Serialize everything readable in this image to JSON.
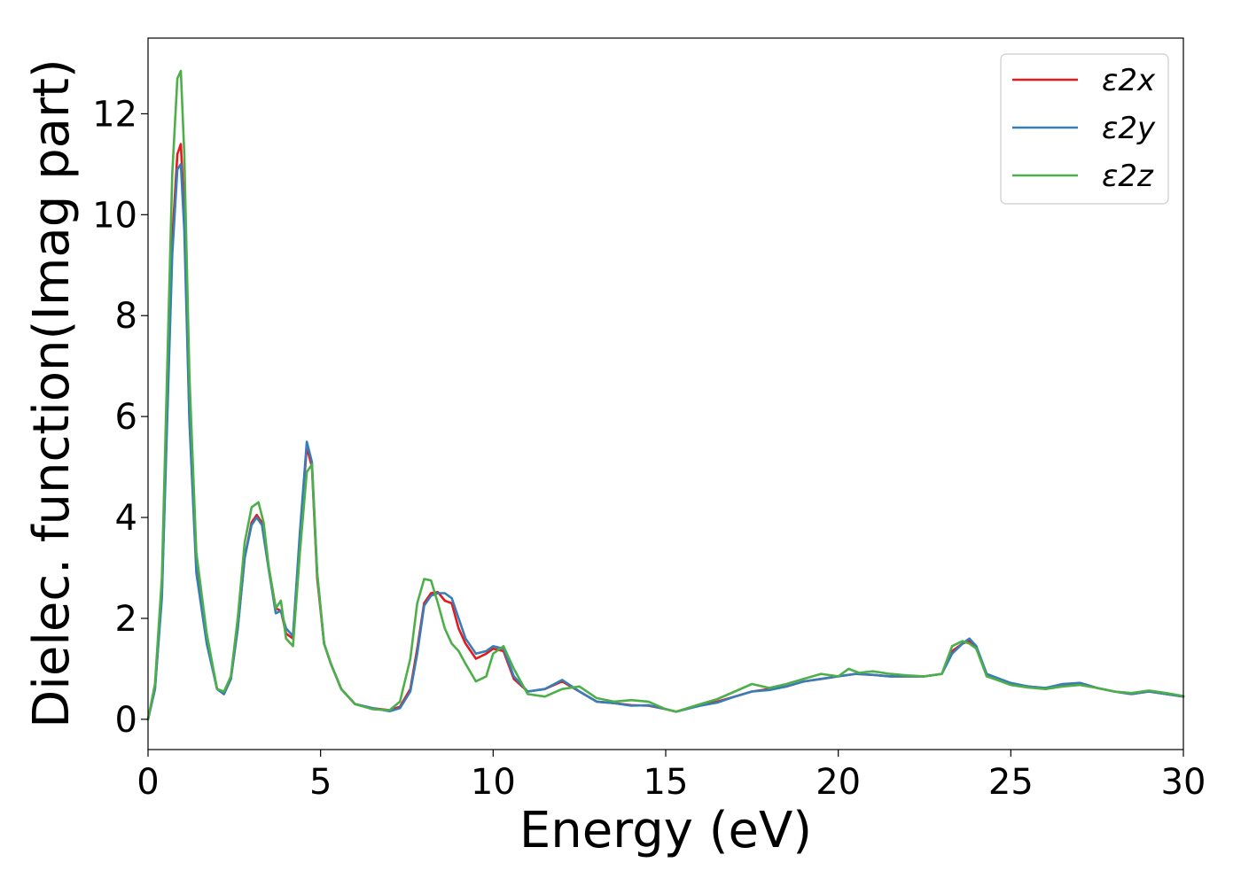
{
  "chart_data": {
    "type": "line",
    "title": "",
    "xlabel": "Energy (eV)",
    "ylabel": "Dielec. function(Imag part)",
    "xlim": [
      0,
      30
    ],
    "ylim": [
      -0.6,
      13.5
    ],
    "xticks": [
      0,
      5,
      10,
      15,
      20,
      25,
      30
    ],
    "yticks": [
      0,
      2,
      4,
      6,
      8,
      10,
      12
    ],
    "grid": false,
    "legend_position": "top-right",
    "series": [
      {
        "name": "ε2x",
        "color": "#e41a1c",
        "x": [
          0,
          0.2,
          0.4,
          0.55,
          0.7,
          0.85,
          0.95,
          1.05,
          1.2,
          1.4,
          1.7,
          2.0,
          2.2,
          2.4,
          2.6,
          2.8,
          3.0,
          3.15,
          3.3,
          3.5,
          3.7,
          3.85,
          4.0,
          4.2,
          4.4,
          4.6,
          4.75,
          4.9,
          5.1,
          5.3,
          5.6,
          6.0,
          6.5,
          7.0,
          7.3,
          7.6,
          7.8,
          8.0,
          8.2,
          8.4,
          8.6,
          8.8,
          9.0,
          9.2,
          9.5,
          9.8,
          10.0,
          10.3,
          10.6,
          11.0,
          11.5,
          12.0,
          12.5,
          13.0,
          13.5,
          14.0,
          14.5,
          15.0,
          15.3,
          16.0,
          16.5,
          17.0,
          17.5,
          18.0,
          18.5,
          19.0,
          19.5,
          20.0,
          20.5,
          21.0,
          21.5,
          22.0,
          22.5,
          23.0,
          23.3,
          23.6,
          23.8,
          24.0,
          24.3,
          24.6,
          25.0,
          25.5,
          26.0,
          26.5,
          27.0,
          27.5,
          28.0,
          28.5,
          29.0,
          29.5,
          30.0
        ],
        "y": [
          0.0,
          0.6,
          2.5,
          6.0,
          9.5,
          11.2,
          11.4,
          10.0,
          6.0,
          3.0,
          1.6,
          0.6,
          0.5,
          0.8,
          1.8,
          3.2,
          3.9,
          4.05,
          3.9,
          3.0,
          2.2,
          2.15,
          1.7,
          1.6,
          3.6,
          5.4,
          5.0,
          2.8,
          1.5,
          1.1,
          0.6,
          0.3,
          0.22,
          0.18,
          0.25,
          0.6,
          1.4,
          2.3,
          2.5,
          2.52,
          2.35,
          2.3,
          1.8,
          1.5,
          1.2,
          1.3,
          1.4,
          1.35,
          0.8,
          0.55,
          0.6,
          0.75,
          0.55,
          0.35,
          0.32,
          0.28,
          0.27,
          0.2,
          0.15,
          0.28,
          0.35,
          0.45,
          0.55,
          0.6,
          0.65,
          0.75,
          0.8,
          0.85,
          0.9,
          0.88,
          0.85,
          0.85,
          0.85,
          0.9,
          1.35,
          1.5,
          1.55,
          1.4,
          0.9,
          0.8,
          0.7,
          0.65,
          0.62,
          0.68,
          0.72,
          0.62,
          0.55,
          0.5,
          0.55,
          0.5,
          0.45
        ]
      },
      {
        "name": "ε2y",
        "color": "#377eb8",
        "x": [
          0,
          0.2,
          0.4,
          0.55,
          0.7,
          0.85,
          0.95,
          1.05,
          1.2,
          1.4,
          1.7,
          2.0,
          2.2,
          2.4,
          2.6,
          2.8,
          3.0,
          3.15,
          3.3,
          3.5,
          3.7,
          3.85,
          4.0,
          4.2,
          4.4,
          4.6,
          4.75,
          4.9,
          5.1,
          5.3,
          5.6,
          6.0,
          6.5,
          7.0,
          7.3,
          7.6,
          7.8,
          8.0,
          8.2,
          8.4,
          8.6,
          8.8,
          9.0,
          9.2,
          9.5,
          9.8,
          10.0,
          10.3,
          10.6,
          11.0,
          11.5,
          12.0,
          12.5,
          13.0,
          13.5,
          14.0,
          14.5,
          15.0,
          15.3,
          16.0,
          16.5,
          17.0,
          17.5,
          18.0,
          18.5,
          19.0,
          19.5,
          20.0,
          20.5,
          21.0,
          21.5,
          22.0,
          22.5,
          23.0,
          23.3,
          23.6,
          23.8,
          24.0,
          24.3,
          24.6,
          25.0,
          25.5,
          26.0,
          26.5,
          27.0,
          27.5,
          28.0,
          28.5,
          29.0,
          29.5,
          30.0
        ],
        "y": [
          0.0,
          0.6,
          2.4,
          5.8,
          9.2,
          10.9,
          11.0,
          9.7,
          5.9,
          2.9,
          1.5,
          0.6,
          0.5,
          0.8,
          1.8,
          3.2,
          3.85,
          4.0,
          3.85,
          2.95,
          2.1,
          2.15,
          1.8,
          1.65,
          3.7,
          5.5,
          5.1,
          2.9,
          1.5,
          1.1,
          0.6,
          0.3,
          0.22,
          0.16,
          0.22,
          0.55,
          1.3,
          2.25,
          2.45,
          2.5,
          2.5,
          2.4,
          2.0,
          1.6,
          1.3,
          1.35,
          1.45,
          1.4,
          0.85,
          0.55,
          0.6,
          0.78,
          0.55,
          0.35,
          0.32,
          0.27,
          0.28,
          0.2,
          0.15,
          0.27,
          0.33,
          0.45,
          0.55,
          0.58,
          0.65,
          0.75,
          0.8,
          0.85,
          0.9,
          0.88,
          0.85,
          0.85,
          0.85,
          0.9,
          1.3,
          1.5,
          1.6,
          1.45,
          0.9,
          0.82,
          0.72,
          0.65,
          0.62,
          0.7,
          0.72,
          0.62,
          0.55,
          0.5,
          0.55,
          0.5,
          0.45
        ]
      },
      {
        "name": "ε2z",
        "color": "#4daf4a",
        "x": [
          0,
          0.2,
          0.4,
          0.55,
          0.7,
          0.85,
          0.95,
          1.05,
          1.2,
          1.4,
          1.7,
          2.0,
          2.2,
          2.4,
          2.6,
          2.8,
          3.0,
          3.2,
          3.35,
          3.5,
          3.7,
          3.85,
          4.0,
          4.2,
          4.4,
          4.6,
          4.75,
          4.9,
          5.1,
          5.3,
          5.6,
          6.0,
          6.5,
          7.0,
          7.3,
          7.6,
          7.8,
          8.0,
          8.2,
          8.4,
          8.6,
          8.8,
          9.0,
          9.2,
          9.5,
          9.8,
          10.0,
          10.3,
          10.6,
          11.0,
          11.5,
          12.0,
          12.5,
          13.0,
          13.5,
          14.0,
          14.5,
          15.0,
          15.3,
          16.0,
          16.5,
          17.0,
          17.5,
          18.0,
          18.5,
          19.0,
          19.5,
          20.0,
          20.3,
          20.6,
          21.0,
          21.5,
          22.0,
          22.5,
          23.0,
          23.3,
          23.6,
          23.8,
          24.0,
          24.3,
          24.6,
          25.0,
          25.5,
          26.0,
          26.5,
          27.0,
          27.5,
          28.0,
          28.5,
          29.0,
          29.5,
          30.0
        ],
        "y": [
          0.0,
          0.7,
          2.8,
          6.8,
          10.8,
          12.7,
          12.85,
          11.2,
          6.8,
          3.3,
          1.7,
          0.6,
          0.55,
          0.85,
          2.0,
          3.5,
          4.2,
          4.3,
          3.9,
          3.0,
          2.2,
          2.35,
          1.6,
          1.45,
          3.3,
          4.9,
          5.05,
          2.9,
          1.5,
          1.1,
          0.6,
          0.3,
          0.2,
          0.18,
          0.35,
          1.2,
          2.3,
          2.78,
          2.75,
          2.3,
          1.8,
          1.5,
          1.35,
          1.1,
          0.75,
          0.85,
          1.3,
          1.45,
          1.0,
          0.5,
          0.45,
          0.6,
          0.65,
          0.42,
          0.35,
          0.38,
          0.35,
          0.2,
          0.15,
          0.3,
          0.4,
          0.55,
          0.7,
          0.62,
          0.7,
          0.8,
          0.9,
          0.85,
          1.0,
          0.92,
          0.95,
          0.9,
          0.87,
          0.85,
          0.9,
          1.45,
          1.55,
          1.5,
          1.4,
          0.85,
          0.78,
          0.68,
          0.63,
          0.6,
          0.65,
          0.68,
          0.62,
          0.55,
          0.52,
          0.57,
          0.52,
          0.46
        ]
      }
    ]
  }
}
